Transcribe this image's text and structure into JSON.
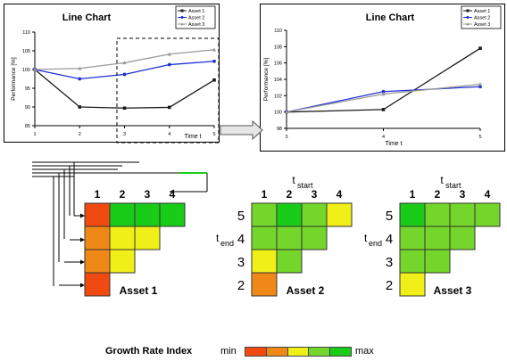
{
  "chart_data": [
    {
      "type": "line",
      "title": "Line Chart",
      "xlabel": "Time t",
      "ylabel": "Performance [%]",
      "x": [
        1,
        2,
        3,
        4,
        5
      ],
      "xlim": [
        1,
        5
      ],
      "ylim": [
        85,
        110
      ],
      "yticks": [
        85,
        90,
        95,
        100,
        105,
        110
      ],
      "grid": false,
      "legend": "top-right",
      "series": [
        {
          "name": "Asset 1",
          "values": [
            100,
            90,
            89.7,
            89.9,
            97.2
          ]
        },
        {
          "name": "Asset 2",
          "values": [
            100,
            97.5,
            98.7,
            101.3,
            102.2
          ]
        },
        {
          "name": "Asset 3",
          "values": [
            100,
            100.3,
            101.8,
            104.1,
            105.3
          ]
        }
      ]
    },
    {
      "type": "line",
      "title": "Line Chart",
      "xlabel": "Time t",
      "ylabel": "Performance [%]",
      "x": [
        3,
        4,
        5
      ],
      "xlim": [
        3,
        5
      ],
      "ylim": [
        98,
        110
      ],
      "yticks": [
        98,
        100,
        102,
        104,
        106,
        108,
        110
      ],
      "grid": false,
      "legend": "top-right",
      "series": [
        {
          "name": "Asset 1",
          "values": [
            100,
            100.3,
            107.8
          ]
        },
        {
          "name": "Asset 2",
          "values": [
            100,
            102.5,
            103.1
          ]
        },
        {
          "name": "Asset 3",
          "values": [
            100,
            102.2,
            103.4
          ]
        }
      ]
    },
    {
      "type": "heatmap",
      "col_header": [
        "1",
        "2",
        "3",
        "4"
      ],
      "row_header": [
        "5",
        "4",
        "3",
        "2"
      ],
      "t_start_label": "t",
      "t_start_sub": "start",
      "t_end_label": "t",
      "t_end_sub": "end",
      "growth_rate_label": "Growth Rate Index",
      "scale_min": "min",
      "scale_max": "max",
      "scale_colors": [
        "#f04a10",
        "#f08818",
        "#f0f018",
        "#74d62a",
        "#18cc18"
      ],
      "grids": [
        {
          "name": "Asset 1",
          "cells": [
            [
              0,
              4,
              4,
              4
            ],
            [
              1,
              2,
              2,
              null
            ],
            [
              1,
              2,
              null,
              null
            ],
            [
              0,
              null,
              null,
              null
            ]
          ]
        },
        {
          "name": "Asset 2",
          "cells": [
            [
              3,
              4,
              3,
              2
            ],
            [
              3,
              3,
              3,
              null
            ],
            [
              2,
              3,
              null,
              null
            ],
            [
              1,
              null,
              null,
              null
            ]
          ]
        },
        {
          "name": "Asset 3",
          "cells": [
            [
              4,
              3,
              3,
              3
            ],
            [
              3,
              3,
              3,
              null
            ],
            [
              3,
              3,
              null,
              null
            ],
            [
              2,
              null,
              null,
              null
            ]
          ]
        }
      ]
    }
  ],
  "colors": {
    "asset1": "#1a1a1a",
    "asset2": "#1f2fd6",
    "asset3": "#9a9a9a",
    "cell_border": "#333333"
  }
}
